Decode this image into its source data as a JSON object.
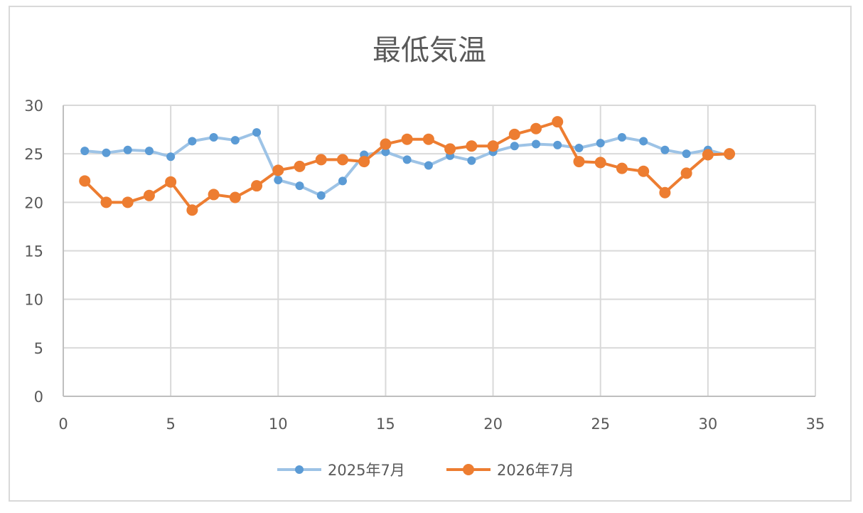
{
  "chart_data": {
    "type": "scatter",
    "title": "最低気温",
    "xlabel": "",
    "ylabel": "",
    "xlim": [
      0,
      35
    ],
    "ylim": [
      0,
      30
    ],
    "xticks": [
      0,
      5,
      10,
      15,
      20,
      25,
      30,
      35
    ],
    "yticks": [
      0,
      5,
      10,
      15,
      20,
      25,
      30
    ],
    "grid": true,
    "legend_position": "bottom",
    "series": [
      {
        "name": "2025年7月",
        "color": "#9dc3e6",
        "marker_color": "#5b9bd5",
        "x": [
          1,
          2,
          3,
          4,
          5,
          6,
          7,
          8,
          9,
          10,
          11,
          12,
          13,
          14,
          15,
          16,
          17,
          18,
          19,
          20,
          21,
          22,
          23,
          24,
          25,
          26,
          27,
          28,
          29,
          30,
          31
        ],
        "y": [
          25.3,
          25.1,
          25.4,
          25.3,
          24.7,
          26.3,
          26.7,
          26.4,
          27.2,
          22.3,
          21.7,
          20.7,
          22.2,
          24.9,
          25.2,
          24.4,
          23.8,
          24.8,
          24.3,
          25.2,
          25.8,
          26.0,
          25.9,
          25.6,
          26.1,
          26.7,
          26.3,
          25.4,
          25.0,
          25.4,
          24.8
        ]
      },
      {
        "name": "2026年7月",
        "color": "#ed7d31",
        "marker_color": "#ed7d31",
        "x": [
          1,
          2,
          3,
          4,
          5,
          6,
          7,
          8,
          9,
          10,
          11,
          12,
          13,
          14,
          15,
          16,
          17,
          18,
          19,
          20,
          21,
          22,
          23,
          24,
          25,
          26,
          27,
          28,
          29,
          30,
          31
        ],
        "y": [
          22.2,
          20.0,
          20.0,
          20.7,
          22.1,
          19.2,
          20.8,
          20.5,
          21.7,
          23.3,
          23.7,
          24.4,
          24.4,
          24.2,
          26.0,
          26.5,
          26.5,
          25.5,
          25.8,
          25.8,
          27.0,
          27.6,
          28.3,
          24.2,
          24.1,
          23.5,
          23.2,
          21.0,
          23.0,
          24.9,
          25.0
        ]
      }
    ]
  }
}
